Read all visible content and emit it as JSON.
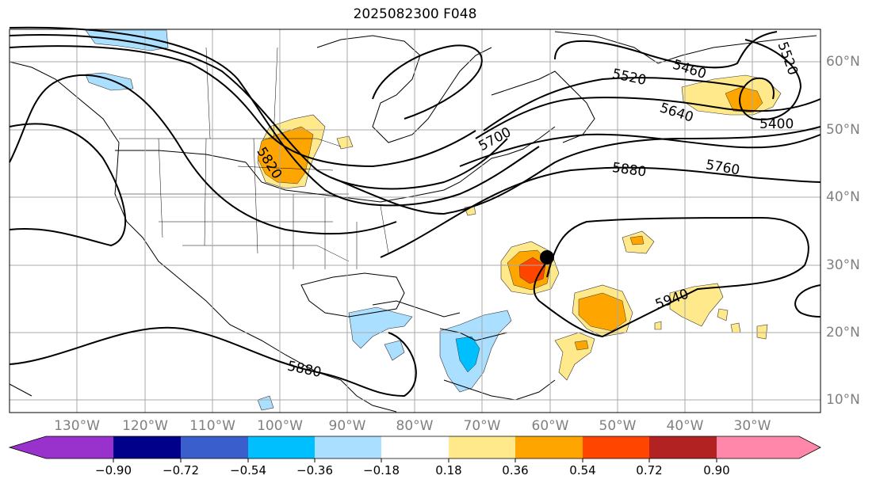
{
  "title": "2025082300 F048",
  "lon_labels": [
    "130°W",
    "120°W",
    "110°W",
    "100°W",
    "90°W",
    "80°W",
    "70°W",
    "60°W",
    "50°W",
    "40°W",
    "30°W"
  ],
  "lat_labels": [
    "60°N",
    "50°N",
    "40°N",
    "30°N",
    "20°N",
    "10°N"
  ],
  "contour_labels": [
    "5460",
    "5520",
    "5520",
    "5640",
    "5400",
    "5700",
    "5760",
    "5880",
    "5820",
    "5880",
    "5940"
  ],
  "colorbar": {
    "tick_labels": [
      "−0.90",
      "−0.72",
      "−0.54",
      "−0.36",
      "−0.18",
      "0.18",
      "0.36",
      "0.54",
      "0.72",
      "0.90"
    ],
    "colors": [
      "#9932cc",
      "#00008b",
      "#3a5fcd",
      "#00bfff",
      "#aadfff",
      "#ffffff",
      "#ffe98a",
      "#ffa500",
      "#ff4500",
      "#b22222",
      "#ff88aa"
    ]
  },
  "colors": {
    "anomaly_light_orange": "#ffe98a",
    "anomaly_orange": "#ffa500",
    "anomaly_red_orange": "#ff4500",
    "anomaly_light_blue": "#aadfff",
    "anomaly_blue": "#00bfff",
    "contour": "#000000",
    "grid": "#a9a9a9",
    "storm_marker": "#000000"
  }
}
